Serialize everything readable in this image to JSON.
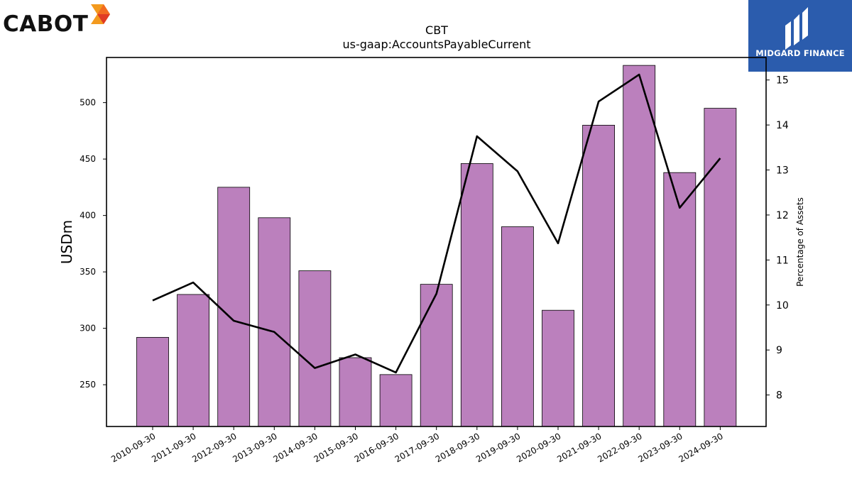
{
  "logos": {
    "left_text": "CABOT",
    "right_text": "MIDGARD FINANCE",
    "right_bg": "#2b5cad"
  },
  "chart_data": {
    "type": "bar",
    "title": "CBT",
    "subtitle": "us-gaap:AccountsPayableCurrent",
    "ylabel": "USDm",
    "y2label": "Percentage of Assets",
    "ylim": [
      213,
      540
    ],
    "y2lim": [
      7.3,
      15.5
    ],
    "yticks": [
      250,
      300,
      350,
      400,
      450,
      500
    ],
    "y2ticks": [
      8,
      9,
      10,
      11,
      12,
      13,
      14,
      15
    ],
    "bar_color": "#bb80bd",
    "line_color": "#000000",
    "grid": false,
    "categories": [
      "2010-09-30",
      "2011-09-30",
      "2012-09-30",
      "2013-09-30",
      "2014-09-30",
      "2015-09-30",
      "2016-09-30",
      "2017-09-30",
      "2018-09-30",
      "2019-09-30",
      "2020-09-30",
      "2021-09-30",
      "2022-09-30",
      "2023-09-30",
      "2024-09-30"
    ],
    "series": [
      {
        "axis": "left",
        "kind": "bar",
        "values": [
          292,
          330,
          425,
          398,
          351,
          274,
          259,
          339,
          446,
          390,
          316,
          480,
          533,
          438,
          495
        ]
      },
      {
        "axis": "right",
        "kind": "line",
        "values": [
          10.1,
          10.5,
          9.65,
          9.4,
          8.6,
          8.9,
          8.5,
          10.25,
          13.75,
          12.97,
          11.37,
          14.52,
          15.12,
          12.16,
          13.26
        ]
      }
    ]
  }
}
